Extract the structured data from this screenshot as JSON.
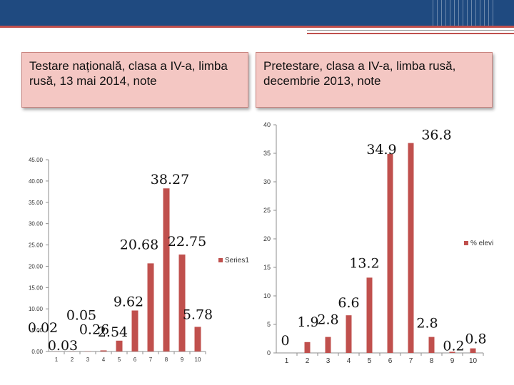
{
  "slide": {
    "left_title": "Testare națională, clasa a IV-a, limba rusă, 13 mai 2014, note",
    "right_title": "Pretestare, clasa a IV-a, limba rusă, decembrie 2013, note",
    "accent_color": "#c0504d",
    "header_color": "#1f4a80"
  },
  "chart_data": [
    {
      "type": "bar",
      "title": "Testare națională, clasa a IV-a, limba rusă, 13 mai 2014, note",
      "categories": [
        "1",
        "2",
        "3",
        "4",
        "5",
        "6",
        "7",
        "8",
        "9",
        "10"
      ],
      "series": [
        {
          "name": "Series1",
          "values": [
            0.02,
            0.03,
            0.05,
            0.26,
            2.54,
            9.62,
            20.68,
            38.27,
            22.75,
            5.78
          ]
        }
      ],
      "data_labels": [
        "0.02",
        "0.03",
        "0.05",
        "0.26",
        "2.54",
        "9.62",
        "20.68",
        "38.27",
        "22.75",
        "5.78"
      ],
      "yticks": [
        "0.00",
        "5.00",
        "10.00",
        "15.00",
        "20.00",
        "25.00",
        "30.00",
        "35.00",
        "40.00",
        "45.00"
      ],
      "ylim": [
        0,
        45
      ],
      "legend": "right",
      "color": "#c0504d"
    },
    {
      "type": "bar",
      "title": "Pretestare, clasa a IV-a, limba rusă, decembrie 2013, note",
      "categories": [
        "1",
        "2",
        "3",
        "4",
        "5",
        "6",
        "7",
        "8",
        "9",
        "10"
      ],
      "series": [
        {
          "name": "% elevi",
          "values": [
            0,
            1.9,
            2.8,
            6.6,
            13.2,
            34.9,
            36.8,
            2.8,
            0.2,
            0.8
          ]
        }
      ],
      "data_labels": [
        "0",
        "1.9",
        "2.8",
        "6.6",
        "13.2",
        "34.9",
        "36.8",
        "2.8",
        "0.2",
        "0.8"
      ],
      "yticks": [
        "0",
        "5",
        "10",
        "15",
        "20",
        "25",
        "30",
        "35",
        "40"
      ],
      "ylim": [
        0,
        40
      ],
      "legend": "right",
      "color": "#c0504d"
    }
  ]
}
